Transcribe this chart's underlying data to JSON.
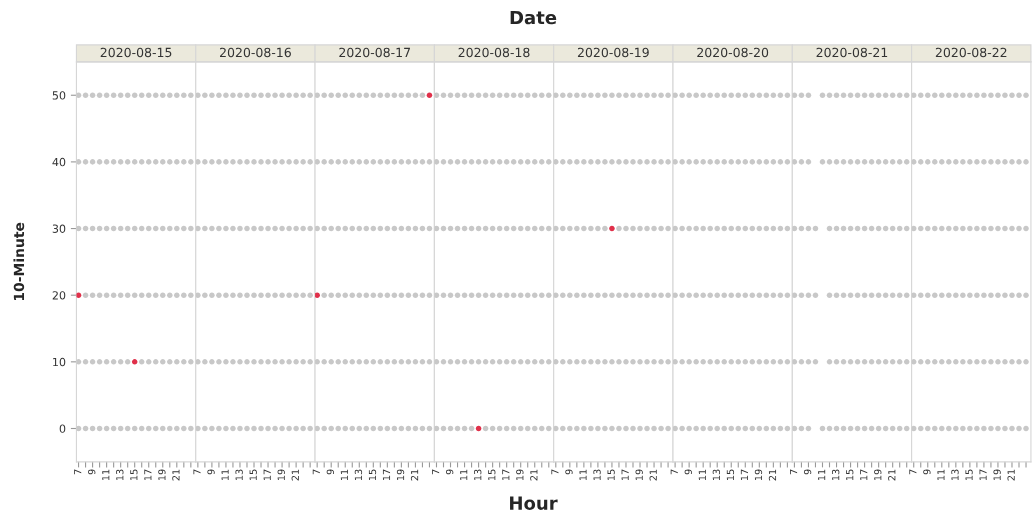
{
  "chart_data": [
    {
      "type": "scatter",
      "title": "2020-08-15",
      "annotations": [
        "Date",
        "Hour"
      ],
      "ylabel": "10-Minute",
      "marker": "circle",
      "xlim": [
        6.7,
        23.7
      ],
      "ylim": [
        -5,
        55
      ],
      "xticks": [
        7,
        {
          "value": 8,
          "label": null
        },
        9,
        {
          "value": 10,
          "label": null
        },
        11,
        {
          "value": 12,
          "label": null
        },
        13,
        {
          "value": 14,
          "label": null
        },
        15,
        {
          "value": 16,
          "label": null
        },
        17,
        {
          "value": 18,
          "label": null
        },
        19,
        {
          "value": 20,
          "label": null
        },
        21,
        {
          "value": 22,
          "label": null
        },
        {
          "value": 23,
          "label": null
        }
      ],
      "yticks": [
        0,
        10,
        20,
        30,
        40,
        50
      ],
      "series": [
        {
          "color": "#c8c8c8",
          "x": [
            7,
            8,
            9,
            10,
            11,
            12,
            13,
            14,
            15,
            16,
            17,
            18,
            19,
            20,
            21,
            22,
            23,
            7,
            8,
            9,
            10,
            11,
            12,
            13,
            14,
            15,
            16,
            17,
            18,
            19,
            20,
            21,
            22,
            23,
            7,
            8,
            9,
            10,
            11,
            12,
            13,
            14,
            15,
            16,
            17,
            18,
            19,
            20,
            21,
            22,
            23,
            8,
            9,
            10,
            11,
            12,
            13,
            14,
            15,
            16,
            17,
            18,
            19,
            20,
            21,
            22,
            23,
            7,
            8,
            9,
            10,
            11,
            12,
            13,
            14,
            16,
            17,
            18,
            19,
            20,
            21,
            22,
            23,
            7,
            8,
            9,
            10,
            11,
            12,
            13,
            14,
            15,
            16,
            17,
            18,
            19,
            20,
            21,
            22,
            23
          ],
          "values": [
            50,
            50,
            50,
            50,
            50,
            50,
            50,
            50,
            50,
            50,
            50,
            50,
            50,
            50,
            50,
            50,
            50,
            40,
            40,
            40,
            40,
            40,
            40,
            40,
            40,
            40,
            40,
            40,
            40,
            40,
            40,
            40,
            40,
            40,
            30,
            30,
            30,
            30,
            30,
            30,
            30,
            30,
            30,
            30,
            30,
            30,
            30,
            30,
            30,
            30,
            30,
            20,
            20,
            20,
            20,
            20,
            20,
            20,
            20,
            20,
            20,
            20,
            20,
            20,
            20,
            20,
            20,
            10,
            10,
            10,
            10,
            10,
            10,
            10,
            10,
            10,
            10,
            10,
            10,
            10,
            10,
            10,
            10,
            0,
            0,
            0,
            0,
            0,
            0,
            0,
            0,
            0,
            0,
            0,
            0,
            0,
            0,
            0,
            0,
            0
          ]
        },
        {
          "color": "#e0304a",
          "x": [
            7,
            15
          ],
          "values": [
            20,
            10
          ]
        }
      ]
    },
    {
      "type": "scatter",
      "title": "2020-08-16",
      "tick_labels": "x",
      "marker": "circle",
      "xlim": [
        6.7,
        23.7
      ],
      "ylim": [
        -5,
        55
      ],
      "xticks": [
        7,
        {
          "value": 8,
          "label": null
        },
        9,
        {
          "value": 10,
          "label": null
        },
        11,
        {
          "value": 12,
          "label": null
        },
        13,
        {
          "value": 14,
          "label": null
        },
        15,
        {
          "value": 16,
          "label": null
        },
        17,
        {
          "value": 18,
          "label": null
        },
        19,
        {
          "value": 20,
          "label": null
        },
        21,
        {
          "value": 22,
          "label": null
        },
        {
          "value": 23,
          "label": null
        }
      ],
      "yticks": [
        0,
        10,
        20,
        30,
        40,
        50
      ],
      "series": [
        {
          "color": "#c8c8c8",
          "x": [
            7,
            8,
            9,
            10,
            11,
            12,
            13,
            14,
            15,
            16,
            17,
            18,
            19,
            20,
            21,
            22,
            23,
            7,
            8,
            9,
            10,
            11,
            12,
            13,
            14,
            15,
            16,
            17,
            18,
            19,
            20,
            21,
            22,
            23,
            7,
            8,
            9,
            10,
            11,
            12,
            13,
            14,
            15,
            16,
            17,
            18,
            19,
            20,
            21,
            22,
            23,
            7,
            8,
            9,
            10,
            11,
            12,
            13,
            14,
            15,
            16,
            17,
            18,
            19,
            20,
            21,
            22,
            23,
            7,
            8,
            9,
            10,
            11,
            12,
            13,
            14,
            15,
            16,
            17,
            18,
            19,
            20,
            21,
            22,
            23,
            7,
            8,
            9,
            10,
            11,
            12,
            13,
            14,
            15,
            16,
            17,
            18,
            19,
            20,
            21,
            22,
            23
          ],
          "values": [
            50,
            50,
            50,
            50,
            50,
            50,
            50,
            50,
            50,
            50,
            50,
            50,
            50,
            50,
            50,
            50,
            50,
            40,
            40,
            40,
            40,
            40,
            40,
            40,
            40,
            40,
            40,
            40,
            40,
            40,
            40,
            40,
            40,
            40,
            30,
            30,
            30,
            30,
            30,
            30,
            30,
            30,
            30,
            30,
            30,
            30,
            30,
            30,
            30,
            30,
            30,
            20,
            20,
            20,
            20,
            20,
            20,
            20,
            20,
            20,
            20,
            20,
            20,
            20,
            20,
            20,
            20,
            20,
            10,
            10,
            10,
            10,
            10,
            10,
            10,
            10,
            10,
            10,
            10,
            10,
            10,
            10,
            10,
            10,
            10,
            0,
            0,
            0,
            0,
            0,
            0,
            0,
            0,
            0,
            0,
            0,
            0,
            0,
            0,
            0,
            0,
            0
          ]
        }
      ]
    },
    {
      "type": "scatter",
      "title": "2020-08-17",
      "tick_labels": "x",
      "marker": "circle",
      "xlim": [
        6.7,
        23.7
      ],
      "ylim": [
        -5,
        55
      ],
      "xticks": [
        7,
        {
          "value": 8,
          "label": null
        },
        9,
        {
          "value": 10,
          "label": null
        },
        11,
        {
          "value": 12,
          "label": null
        },
        13,
        {
          "value": 14,
          "label": null
        },
        15,
        {
          "value": 16,
          "label": null
        },
        17,
        {
          "value": 18,
          "label": null
        },
        19,
        {
          "value": 20,
          "label": null
        },
        21,
        {
          "value": 22,
          "label": null
        },
        {
          "value": 23,
          "label": null
        }
      ],
      "yticks": [
        0,
        10,
        20,
        30,
        40,
        50
      ],
      "series": [
        {
          "color": "#c8c8c8",
          "x": [
            7,
            8,
            9,
            10,
            11,
            12,
            13,
            14,
            15,
            16,
            17,
            18,
            19,
            20,
            21,
            22,
            7,
            8,
            9,
            10,
            11,
            12,
            13,
            14,
            15,
            16,
            17,
            18,
            19,
            20,
            21,
            22,
            23,
            7,
            8,
            9,
            10,
            11,
            12,
            13,
            14,
            15,
            16,
            17,
            18,
            19,
            20,
            21,
            22,
            23,
            8,
            9,
            10,
            11,
            12,
            13,
            14,
            15,
            16,
            17,
            18,
            19,
            20,
            21,
            22,
            23,
            7,
            8,
            9,
            10,
            11,
            12,
            13,
            14,
            15,
            16,
            17,
            18,
            19,
            20,
            21,
            22,
            23,
            7,
            8,
            9,
            10,
            11,
            12,
            13,
            14,
            15,
            16,
            17,
            18,
            19,
            20,
            21,
            22,
            23
          ],
          "values": [
            50,
            50,
            50,
            50,
            50,
            50,
            50,
            50,
            50,
            50,
            50,
            50,
            50,
            50,
            50,
            50,
            40,
            40,
            40,
            40,
            40,
            40,
            40,
            40,
            40,
            40,
            40,
            40,
            40,
            40,
            40,
            40,
            40,
            30,
            30,
            30,
            30,
            30,
            30,
            30,
            30,
            30,
            30,
            30,
            30,
            30,
            30,
            30,
            30,
            30,
            20,
            20,
            20,
            20,
            20,
            20,
            20,
            20,
            20,
            20,
            20,
            20,
            20,
            20,
            20,
            20,
            10,
            10,
            10,
            10,
            10,
            10,
            10,
            10,
            10,
            10,
            10,
            10,
            10,
            10,
            10,
            10,
            10,
            0,
            0,
            0,
            0,
            0,
            0,
            0,
            0,
            0,
            0,
            0,
            0,
            0,
            0,
            0,
            0,
            0
          ]
        },
        {
          "color": "#e0304a",
          "x": [
            23,
            7
          ],
          "values": [
            50,
            20
          ]
        }
      ]
    },
    {
      "type": "scatter",
      "title": "2020-08-18",
      "tick_labels": "x",
      "marker": "circle",
      "xlim": [
        6.7,
        23.7
      ],
      "ylim": [
        -5,
        55
      ],
      "xticks": [
        7,
        {
          "value": 8,
          "label": null
        },
        9,
        {
          "value": 10,
          "label": null
        },
        11,
        {
          "value": 12,
          "label": null
        },
        13,
        {
          "value": 14,
          "label": null
        },
        15,
        {
          "value": 16,
          "label": null
        },
        17,
        {
          "value": 18,
          "label": null
        },
        19,
        {
          "value": 20,
          "label": null
        },
        21,
        {
          "value": 22,
          "label": null
        },
        {
          "value": 23,
          "label": null
        }
      ],
      "yticks": [
        0,
        10,
        20,
        30,
        40,
        50
      ],
      "series": [
        {
          "color": "#c8c8c8",
          "x": [
            7,
            8,
            9,
            10,
            11,
            12,
            13,
            14,
            15,
            16,
            17,
            18,
            19,
            20,
            21,
            22,
            23,
            7,
            8,
            9,
            10,
            11,
            12,
            13,
            14,
            15,
            16,
            17,
            18,
            19,
            20,
            21,
            22,
            23,
            7,
            8,
            9,
            10,
            11,
            12,
            13,
            14,
            15,
            16,
            17,
            18,
            19,
            20,
            21,
            22,
            23,
            7,
            8,
            9,
            10,
            11,
            12,
            13,
            14,
            15,
            16,
            17,
            18,
            19,
            20,
            21,
            22,
            23,
            7,
            8,
            9,
            10,
            11,
            12,
            13,
            14,
            15,
            16,
            17,
            18,
            19,
            20,
            21,
            22,
            23,
            7,
            8,
            9,
            10,
            11,
            12,
            14,
            15,
            16,
            17,
            18,
            19,
            20,
            21,
            22,
            23
          ],
          "values": [
            50,
            50,
            50,
            50,
            50,
            50,
            50,
            50,
            50,
            50,
            50,
            50,
            50,
            50,
            50,
            50,
            50,
            40,
            40,
            40,
            40,
            40,
            40,
            40,
            40,
            40,
            40,
            40,
            40,
            40,
            40,
            40,
            40,
            40,
            30,
            30,
            30,
            30,
            30,
            30,
            30,
            30,
            30,
            30,
            30,
            30,
            30,
            30,
            30,
            30,
            30,
            20,
            20,
            20,
            20,
            20,
            20,
            20,
            20,
            20,
            20,
            20,
            20,
            20,
            20,
            20,
            20,
            20,
            10,
            10,
            10,
            10,
            10,
            10,
            10,
            10,
            10,
            10,
            10,
            10,
            10,
            10,
            10,
            10,
            10,
            0,
            0,
            0,
            0,
            0,
            0,
            0,
            0,
            0,
            0,
            0,
            0,
            0,
            0,
            0,
            0
          ]
        },
        {
          "color": "#e0304a",
          "x": [
            13
          ],
          "values": [
            0
          ]
        }
      ]
    },
    {
      "type": "scatter",
      "title": "2020-08-19",
      "tick_labels": "x",
      "marker": "circle",
      "xlim": [
        6.7,
        23.7
      ],
      "ylim": [
        -5,
        55
      ],
      "xticks": [
        7,
        {
          "value": 8,
          "label": null
        },
        9,
        {
          "value": 10,
          "label": null
        },
        11,
        {
          "value": 12,
          "label": null
        },
        13,
        {
          "value": 14,
          "label": null
        },
        15,
        {
          "value": 16,
          "label": null
        },
        17,
        {
          "value": 18,
          "label": null
        },
        19,
        {
          "value": 20,
          "label": null
        },
        21,
        {
          "value": 22,
          "label": null
        },
        {
          "value": 23,
          "label": null
        }
      ],
      "yticks": [
        0,
        10,
        20,
        30,
        40,
        50
      ],
      "series": [
        {
          "color": "#c8c8c8",
          "x": [
            7,
            8,
            9,
            10,
            11,
            12,
            13,
            14,
            15,
            16,
            17,
            18,
            19,
            20,
            21,
            22,
            23,
            7,
            8,
            9,
            10,
            11,
            12,
            13,
            14,
            15,
            16,
            17,
            18,
            19,
            20,
            21,
            22,
            23,
            7,
            8,
            9,
            10,
            11,
            12,
            13,
            14,
            16,
            17,
            18,
            19,
            20,
            21,
            22,
            23,
            7,
            8,
            9,
            10,
            11,
            12,
            13,
            14,
            15,
            16,
            17,
            18,
            19,
            20,
            21,
            22,
            23,
            7,
            8,
            9,
            10,
            11,
            12,
            13,
            14,
            15,
            16,
            17,
            18,
            19,
            20,
            21,
            22,
            23,
            7,
            8,
            9,
            10,
            11,
            12,
            13,
            14,
            15,
            16,
            17,
            18,
            19,
            20,
            21,
            22,
            23
          ],
          "values": [
            50,
            50,
            50,
            50,
            50,
            50,
            50,
            50,
            50,
            50,
            50,
            50,
            50,
            50,
            50,
            50,
            50,
            40,
            40,
            40,
            40,
            40,
            40,
            40,
            40,
            40,
            40,
            40,
            40,
            40,
            40,
            40,
            40,
            40,
            30,
            30,
            30,
            30,
            30,
            30,
            30,
            30,
            30,
            30,
            30,
            30,
            30,
            30,
            30,
            30,
            20,
            20,
            20,
            20,
            20,
            20,
            20,
            20,
            20,
            20,
            20,
            20,
            20,
            20,
            20,
            20,
            20,
            10,
            10,
            10,
            10,
            10,
            10,
            10,
            10,
            10,
            10,
            10,
            10,
            10,
            10,
            10,
            10,
            10,
            0,
            0,
            0,
            0,
            0,
            0,
            0,
            0,
            0,
            0,
            0,
            0,
            0,
            0,
            0,
            0,
            0
          ]
        },
        {
          "color": "#e0304a",
          "x": [
            15
          ],
          "values": [
            30
          ]
        }
      ]
    },
    {
      "type": "scatter",
      "title": "2020-08-20",
      "tick_labels": "x",
      "marker": "circle",
      "xlim": [
        6.7,
        23.7
      ],
      "ylim": [
        -5,
        55
      ],
      "xticks": [
        7,
        {
          "value": 8,
          "label": null
        },
        9,
        {
          "value": 10,
          "label": null
        },
        11,
        {
          "value": 12,
          "label": null
        },
        13,
        {
          "value": 14,
          "label": null
        },
        15,
        {
          "value": 16,
          "label": null
        },
        17,
        {
          "value": 18,
          "label": null
        },
        19,
        {
          "value": 20,
          "label": null
        },
        21,
        {
          "value": 22,
          "label": null
        },
        {
          "value": 23,
          "label": null
        }
      ],
      "yticks": [
        0,
        10,
        20,
        30,
        40,
        50
      ],
      "series": [
        {
          "color": "#c8c8c8",
          "x": [
            7,
            8,
            9,
            10,
            11,
            12,
            13,
            14,
            15,
            16,
            17,
            18,
            19,
            20,
            21,
            22,
            23,
            7,
            8,
            9,
            10,
            11,
            12,
            13,
            14,
            15,
            16,
            17,
            18,
            19,
            20,
            21,
            22,
            23,
            7,
            8,
            9,
            10,
            11,
            12,
            13,
            14,
            15,
            16,
            17,
            18,
            19,
            20,
            21,
            22,
            23,
            7,
            8,
            9,
            10,
            11,
            12,
            13,
            14,
            15,
            16,
            17,
            18,
            19,
            20,
            21,
            22,
            23,
            7,
            8,
            9,
            10,
            11,
            12,
            13,
            14,
            15,
            16,
            17,
            18,
            19,
            20,
            21,
            22,
            23,
            7,
            8,
            9,
            10,
            11,
            12,
            13,
            14,
            15,
            16,
            17,
            18,
            19,
            20,
            21,
            22,
            23
          ],
          "values": [
            50,
            50,
            50,
            50,
            50,
            50,
            50,
            50,
            50,
            50,
            50,
            50,
            50,
            50,
            50,
            50,
            50,
            40,
            40,
            40,
            40,
            40,
            40,
            40,
            40,
            40,
            40,
            40,
            40,
            40,
            40,
            40,
            40,
            40,
            30,
            30,
            30,
            30,
            30,
            30,
            30,
            30,
            30,
            30,
            30,
            30,
            30,
            30,
            30,
            30,
            30,
            20,
            20,
            20,
            20,
            20,
            20,
            20,
            20,
            20,
            20,
            20,
            20,
            20,
            20,
            20,
            20,
            20,
            10,
            10,
            10,
            10,
            10,
            10,
            10,
            10,
            10,
            10,
            10,
            10,
            10,
            10,
            10,
            10,
            10,
            0,
            0,
            0,
            0,
            0,
            0,
            0,
            0,
            0,
            0,
            0,
            0,
            0,
            0,
            0,
            0,
            0
          ]
        }
      ]
    },
    {
      "type": "scatter",
      "title": "2020-08-21",
      "tick_labels": "x",
      "marker": "circle",
      "xlim": [
        6.7,
        23.7
      ],
      "ylim": [
        -5,
        55
      ],
      "xticks": [
        7,
        {
          "value": 8,
          "label": null
        },
        9,
        {
          "value": 10,
          "label": null
        },
        11,
        {
          "value": 12,
          "label": null
        },
        13,
        {
          "value": 14,
          "label": null
        },
        15,
        {
          "value": 16,
          "label": null
        },
        17,
        {
          "value": 18,
          "label": null
        },
        19,
        {
          "value": 20,
          "label": null
        },
        21,
        {
          "value": 22,
          "label": null
        },
        {
          "value": 23,
          "label": null
        }
      ],
      "yticks": [
        0,
        10,
        20,
        30,
        40,
        50
      ],
      "series": [
        {
          "color": "#c8c8c8",
          "x": [
            7,
            8,
            9,
            11,
            12,
            13,
            14,
            15,
            16,
            17,
            18,
            19,
            20,
            21,
            22,
            23,
            7,
            8,
            9,
            11,
            12,
            13,
            14,
            15,
            16,
            17,
            18,
            19,
            20,
            21,
            22,
            23,
            7,
            8,
            9,
            10,
            12,
            13,
            14,
            15,
            16,
            17,
            18,
            19,
            20,
            21,
            22,
            23,
            7,
            8,
            9,
            10,
            12,
            13,
            14,
            15,
            16,
            17,
            18,
            19,
            20,
            21,
            22,
            23,
            7,
            8,
            9,
            10,
            12,
            13,
            14,
            15,
            16,
            17,
            18,
            19,
            20,
            21,
            22,
            23,
            7,
            8,
            9,
            11,
            12,
            13,
            14,
            15,
            16,
            17,
            18,
            19,
            20,
            21,
            22,
            23
          ],
          "values": [
            50,
            50,
            50,
            50,
            50,
            50,
            50,
            50,
            50,
            50,
            50,
            50,
            50,
            50,
            50,
            50,
            40,
            40,
            40,
            40,
            40,
            40,
            40,
            40,
            40,
            40,
            40,
            40,
            40,
            40,
            40,
            40,
            30,
            30,
            30,
            30,
            30,
            30,
            30,
            30,
            30,
            30,
            30,
            30,
            30,
            30,
            30,
            30,
            20,
            20,
            20,
            20,
            20,
            20,
            20,
            20,
            20,
            20,
            20,
            20,
            20,
            20,
            20,
            20,
            10,
            10,
            10,
            10,
            10,
            10,
            10,
            10,
            10,
            10,
            10,
            10,
            10,
            10,
            10,
            10,
            0,
            0,
            0,
            0,
            0,
            0,
            0,
            0,
            0,
            0,
            0,
            0,
            0,
            0,
            0,
            0
          ]
        }
      ]
    },
    {
      "type": "scatter",
      "title": "2020-08-22",
      "tick_labels": "x",
      "marker": "circle",
      "xlim": [
        6.7,
        23.7
      ],
      "ylim": [
        -5,
        55
      ],
      "xticks": [
        7,
        {
          "value": 8,
          "label": null
        },
        9,
        {
          "value": 10,
          "label": null
        },
        11,
        {
          "value": 12,
          "label": null
        },
        13,
        {
          "value": 14,
          "label": null
        },
        15,
        {
          "value": 16,
          "label": null
        },
        17,
        {
          "value": 18,
          "label": null
        },
        19,
        {
          "value": 20,
          "label": null
        },
        21,
        {
          "value": 22,
          "label": null
        },
        {
          "value": 23,
          "label": null
        }
      ],
      "yticks": [
        0,
        10,
        20,
        30,
        40,
        50
      ],
      "series": [
        {
          "color": "#c8c8c8",
          "x": [
            7,
            8,
            9,
            10,
            11,
            12,
            13,
            14,
            15,
            16,
            17,
            18,
            19,
            20,
            21,
            22,
            23,
            7,
            8,
            9,
            10,
            11,
            12,
            13,
            14,
            15,
            16,
            17,
            18,
            19,
            20,
            21,
            22,
            23,
            7,
            8,
            9,
            10,
            11,
            12,
            13,
            14,
            15,
            16,
            17,
            18,
            19,
            20,
            21,
            22,
            23,
            7,
            8,
            9,
            10,
            11,
            12,
            13,
            14,
            15,
            16,
            17,
            18,
            19,
            20,
            21,
            22,
            23,
            7,
            8,
            9,
            10,
            11,
            12,
            13,
            14,
            15,
            16,
            17,
            18,
            19,
            20,
            21,
            22,
            23,
            7,
            8,
            9,
            10,
            11,
            12,
            13,
            14,
            15,
            16,
            17,
            18,
            19,
            20,
            21,
            22,
            23
          ],
          "values": [
            50,
            50,
            50,
            50,
            50,
            50,
            50,
            50,
            50,
            50,
            50,
            50,
            50,
            50,
            50,
            50,
            50,
            40,
            40,
            40,
            40,
            40,
            40,
            40,
            40,
            40,
            40,
            40,
            40,
            40,
            40,
            40,
            40,
            40,
            30,
            30,
            30,
            30,
            30,
            30,
            30,
            30,
            30,
            30,
            30,
            30,
            30,
            30,
            30,
            30,
            30,
            20,
            20,
            20,
            20,
            20,
            20,
            20,
            20,
            20,
            20,
            20,
            20,
            20,
            20,
            20,
            20,
            20,
            10,
            10,
            10,
            10,
            10,
            10,
            10,
            10,
            10,
            10,
            10,
            10,
            10,
            10,
            10,
            10,
            10,
            0,
            0,
            0,
            0,
            0,
            0,
            0,
            0,
            0,
            0,
            0,
            0,
            0,
            0,
            0,
            0,
            0
          ]
        }
      ]
    }
  ]
}
